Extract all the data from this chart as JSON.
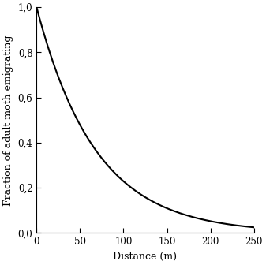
{
  "xlabel": "Distance (m)",
  "ylabel": "Fraction of adult moth emigrating",
  "xlim": [
    0,
    250
  ],
  "ylim": [
    0.0,
    1.0
  ],
  "xticks": [
    0,
    50,
    100,
    150,
    200,
    250
  ],
  "yticks": [
    0.0,
    0.2,
    0.4,
    0.6,
    0.8,
    1.0
  ],
  "line_color": "#000000",
  "line_width": 1.5,
  "max_distance": 250,
  "decay_k": 0.035,
  "decay_power": 0.65,
  "background_color": "#ffffff",
  "tick_fontsize": 8.5,
  "label_fontsize": 9,
  "spine_color": "#000000"
}
